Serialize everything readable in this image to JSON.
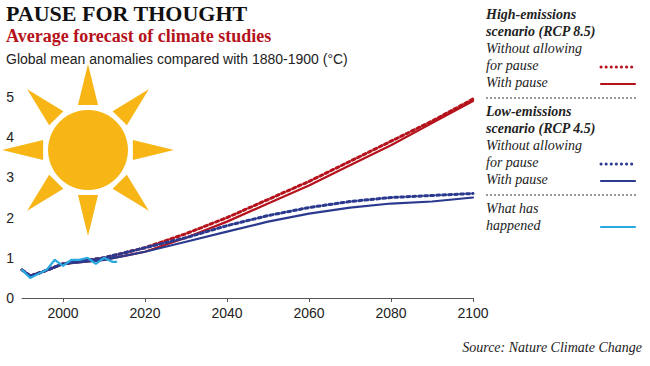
{
  "chart_data": {
    "type": "line",
    "title": "PAUSE FOR THOUGHT",
    "subtitle": "Average forecast of climate studies",
    "ylabel": "Global mean anomalies compared with 1880-1900 (°C)",
    "source": "Source: Nature Climate Change",
    "xlim": [
      1990,
      2100
    ],
    "xticks": [
      2000,
      2020,
      2040,
      2060,
      2080,
      2100
    ],
    "ylim": [
      0,
      5
    ],
    "yticks": [
      0,
      1,
      2,
      3,
      4,
      5
    ],
    "grid": false,
    "series": [
      {
        "name": "Without allowing for pause",
        "group": "High-emissions scenario (RCP 8.5)",
        "color": "#b5121b",
        "line_style": "dotted",
        "x": [
          1990,
          1992,
          1995,
          2000,
          2010,
          2020,
          2030,
          2040,
          2050,
          2060,
          2070,
          2080,
          2090,
          2100
        ],
        "values": [
          0.7,
          0.55,
          0.65,
          0.85,
          1.0,
          1.25,
          1.6,
          2.0,
          2.45,
          2.9,
          3.4,
          3.9,
          4.4,
          4.95
        ]
      },
      {
        "name": "With pause",
        "group": "High-emissions scenario (RCP 8.5)",
        "color": "#b5121b",
        "line_style": "solid",
        "x": [
          1990,
          1992,
          1995,
          2000,
          2010,
          2020,
          2030,
          2040,
          2050,
          2060,
          2070,
          2080,
          2090,
          2100
        ],
        "values": [
          0.7,
          0.55,
          0.65,
          0.85,
          0.95,
          1.15,
          1.5,
          1.9,
          2.35,
          2.8,
          3.3,
          3.8,
          4.35,
          4.9
        ]
      },
      {
        "name": "Without allowing for pause",
        "group": "Low-emissions scenario (RCP 4.5)",
        "color": "#2b3a8f",
        "line_style": "dotted",
        "x": [
          1990,
          1992,
          1995,
          2000,
          2010,
          2020,
          2030,
          2040,
          2050,
          2060,
          2070,
          2080,
          2090,
          2100
        ],
        "values": [
          0.7,
          0.55,
          0.65,
          0.85,
          1.0,
          1.25,
          1.5,
          1.8,
          2.05,
          2.25,
          2.4,
          2.5,
          2.55,
          2.6
        ]
      },
      {
        "name": "With pause",
        "group": "Low-emissions scenario (RCP 4.5)",
        "color": "#2b3a8f",
        "line_style": "solid",
        "x": [
          1990,
          1992,
          1995,
          2000,
          2010,
          2020,
          2030,
          2040,
          2050,
          2060,
          2070,
          2080,
          2090,
          2100
        ],
        "values": [
          0.7,
          0.55,
          0.65,
          0.85,
          0.95,
          1.15,
          1.4,
          1.65,
          1.9,
          2.1,
          2.25,
          2.35,
          2.4,
          2.5
        ]
      },
      {
        "name": "What has happened",
        "color": "#29a9e0",
        "line_style": "solid",
        "x": [
          1990,
          1992,
          1994,
          1996,
          1998,
          2000,
          2002,
          2004,
          2006,
          2008,
          2010,
          2012,
          2013
        ],
        "values": [
          0.7,
          0.5,
          0.6,
          0.7,
          0.95,
          0.8,
          0.95,
          0.95,
          1.0,
          0.85,
          1.0,
          0.9,
          0.9
        ]
      }
    ]
  }
}
